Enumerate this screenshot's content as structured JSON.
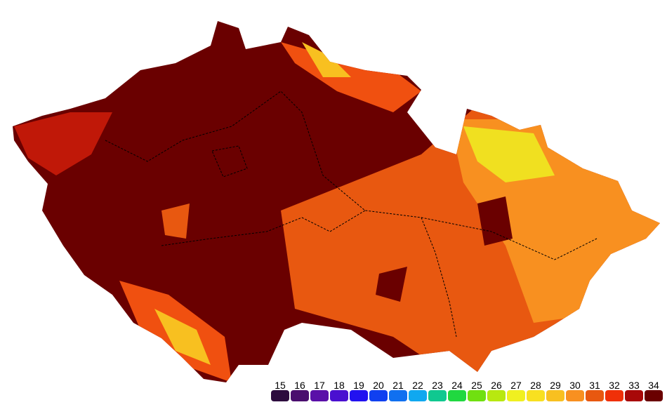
{
  "legend": {
    "items": [
      {
        "value": 15,
        "color": "#2d0b3e"
      },
      {
        "value": 16,
        "color": "#4a0e6e"
      },
      {
        "value": 17,
        "color": "#5a10a8"
      },
      {
        "value": 18,
        "color": "#4a10d0"
      },
      {
        "value": 19,
        "color": "#2212f0"
      },
      {
        "value": 20,
        "color": "#1040f0"
      },
      {
        "value": 21,
        "color": "#1070f0"
      },
      {
        "value": 22,
        "color": "#10a8f0"
      },
      {
        "value": 23,
        "color": "#10c890"
      },
      {
        "value": 24,
        "color": "#20d840"
      },
      {
        "value": 25,
        "color": "#70e010"
      },
      {
        "value": 26,
        "color": "#b8e810"
      },
      {
        "value": 27,
        "color": "#f0f020"
      },
      {
        "value": 28,
        "color": "#f8e020"
      },
      {
        "value": 29,
        "color": "#f8c020"
      },
      {
        "value": 30,
        "color": "#f89020"
      },
      {
        "value": 31,
        "color": "#e85810"
      },
      {
        "value": 32,
        "color": "#f03008"
      },
      {
        "value": 33,
        "color": "#a80808"
      },
      {
        "value": 34,
        "color": "#6a0000"
      }
    ]
  }
}
